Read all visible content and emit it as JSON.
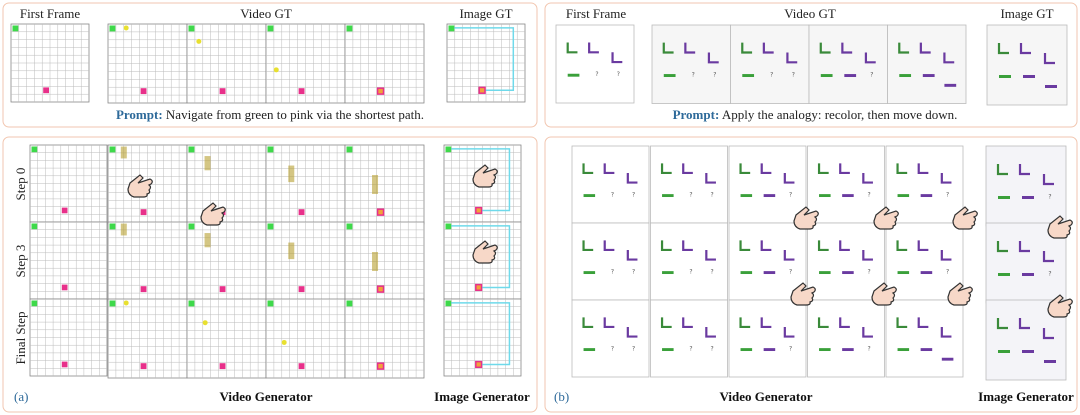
{
  "panel_a": {
    "label": "(a)",
    "headers": [
      "First Frame",
      "Video GT",
      "Image GT"
    ],
    "prompt_label": "Prompt:",
    "prompt": "Navigate from green to pink via the shortest path.",
    "row_labels": [
      "Step 0",
      "Step 3",
      "Final Step"
    ],
    "footers": [
      "Video Generator",
      "Image Generator"
    ]
  },
  "panel_b": {
    "label": "(b)",
    "headers": [
      "First Frame",
      "Video GT",
      "Image GT"
    ],
    "prompt_label": "Prompt:",
    "prompt": "Apply the analogy: recolor, then move down.",
    "unknown": "?",
    "footers": [
      "Video Generator",
      "Image Generator"
    ]
  }
}
